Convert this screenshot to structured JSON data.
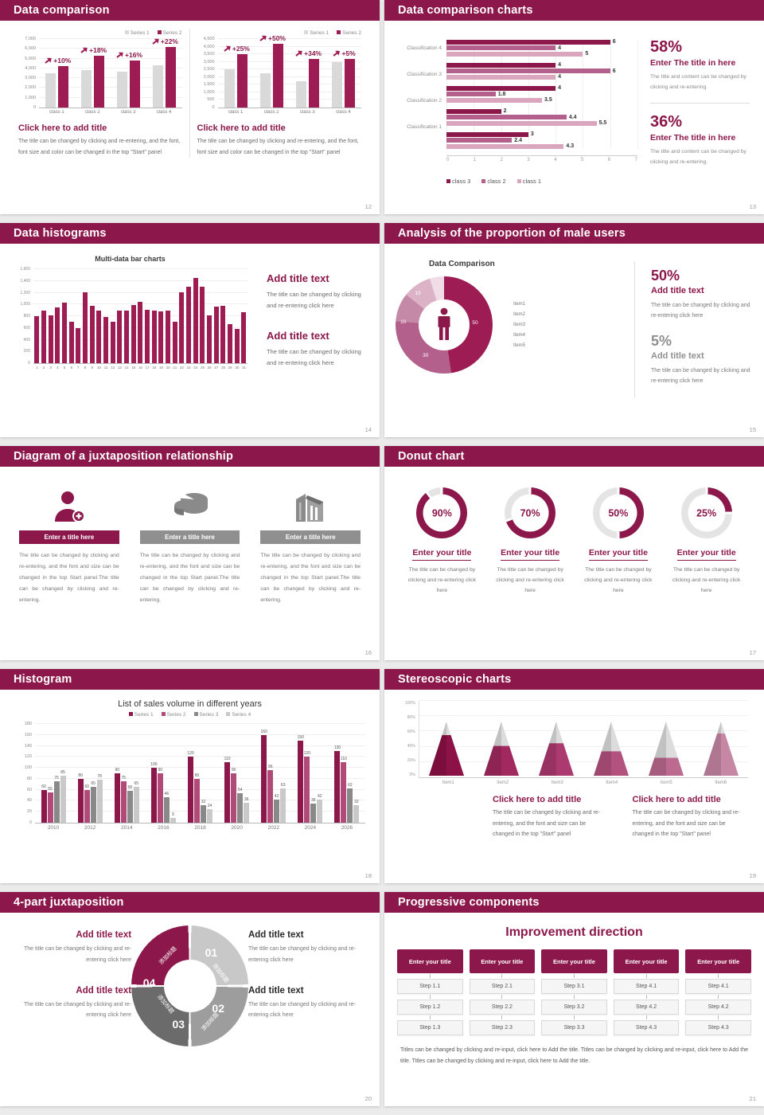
{
  "page": {
    "background": "#ebebeb"
  },
  "colors": {
    "header": "#8C184B",
    "accent": "#9D1C53",
    "bar_gray": "#D9D9D9",
    "rose": "#B3618C",
    "pink_light": "#D9A6BE",
    "ring_track": "#E4E4E4",
    "s18_series": [
      "#8C184B",
      "#B04A78",
      "#898989",
      "#C9C9C9"
    ],
    "donut15": [
      "#9D1C53",
      "#B3618C",
      "#C489A6",
      "#DCB2C7",
      "#EFDCE7"
    ],
    "pyramid": [
      "#8C1146",
      "#A22960",
      "#AC3A70",
      "#B4527F",
      "#BC6A90",
      "#C687A5"
    ],
    "ring4": [
      "#C8C8C8",
      "#9D9D9D",
      "#6B6B6B",
      "#8C184B"
    ]
  },
  "slides": {
    "s12": {
      "title": "Data comparison",
      "page_no": "12",
      "chart_data": {
        "type": "bar",
        "legend": [
          "Series 1",
          "Series 2"
        ],
        "charts": [
          {
            "categories": [
              "class 1",
              "class 2",
              "class 3",
              "class 4"
            ],
            "series": [
              {
                "name": "Series 1",
                "values": [
                  3500,
                  3800,
                  3700,
                  4300
                ]
              },
              {
                "name": "Series 2",
                "values": [
                  4200,
                  5300,
                  4800,
                  6200
                ]
              }
            ],
            "annotations": [
              "+10%",
              "+18%",
              "+16%",
              "+22%"
            ],
            "ylim": [
              0,
              7000
            ],
            "ystep": 1000
          },
          {
            "categories": [
              "class 1",
              "class 2",
              "class 3",
              "class 4"
            ],
            "series": [
              {
                "name": "Series 1",
                "values": [
                  2500,
                  2250,
                  1750,
                  3000
                ]
              },
              {
                "name": "Series 2",
                "values": [
                  3500,
                  4200,
                  3200,
                  3200
                ]
              }
            ],
            "annotations": [
              "+25%",
              "+50%",
              "+34%",
              "+5%"
            ],
            "ylim": [
              0,
              4500
            ],
            "ystep": 500
          }
        ]
      },
      "captions": [
        {
          "heading": "Click here to add title",
          "body": "The title can be changed by clicking and re-entering, and the font, font size and color can be changed in the top \"Start\" panel"
        },
        {
          "heading": "Click here to add title",
          "body": "The title can be changed by clicking and re-entering, and the font, font size and color can be changed in the top \"Start\" panel"
        }
      ]
    },
    "s13": {
      "title": "Data comparison charts",
      "page_no": "13",
      "chart_data": {
        "type": "bar-horizontal",
        "xlim": [
          0,
          7
        ],
        "groups": [
          {
            "label": "Classification 4",
            "values": [
              6,
              4,
              5
            ]
          },
          {
            "label": "Classification 3",
            "values": [
              4,
              6,
              4
            ]
          },
          {
            "label": "Classification 2",
            "values": [
              4,
              1.8,
              3.5
            ]
          },
          {
            "label": "Classification 1",
            "values": [
              2,
              4.4,
              5.5
            ]
          },
          {
            "label": "",
            "values": [
              3,
              2.4,
              4.3
            ]
          }
        ],
        "legend": [
          "class 3",
          "class 2",
          "class 1"
        ]
      },
      "stats": [
        {
          "value": "58%",
          "heading": "Enter The title in here",
          "body": "The title and content can be changed by clicking and re-entering."
        },
        {
          "value": "36%",
          "heading": "Enter The title in here",
          "body": "The title and content can be changed by clicking and re-entering."
        }
      ]
    },
    "s14": {
      "title": "Data histograms",
      "page_no": "14",
      "chart_data": {
        "type": "bar",
        "title": "Multi-data bar charts",
        "categories": [
          "1",
          "2",
          "3",
          "4",
          "5",
          "6",
          "7",
          "8",
          "9",
          "10",
          "11",
          "12",
          "13",
          "14",
          "15",
          "16",
          "17",
          "18",
          "19",
          "20",
          "21",
          "22",
          "23",
          "24",
          "25",
          "26",
          "27",
          "28",
          "29",
          "30",
          "31"
        ],
        "values": [
          800,
          900,
          810,
          950,
          1030,
          700,
          600,
          1210,
          980,
          900,
          780,
          700,
          900,
          900,
          990,
          1050,
          910,
          900,
          880,
          900,
          700,
          1210,
          1300,
          1450,
          1300,
          810,
          960,
          970,
          660,
          590,
          870
        ],
        "ylim": [
          0,
          1600
        ],
        "ystep": 200
      },
      "blocks": [
        {
          "heading": "Add title text",
          "body": "The title can be changed by clicking and re-entering click here"
        },
        {
          "heading": "Add title text",
          "body": "The title can be changed by clicking and re-entering click here"
        }
      ]
    },
    "s15": {
      "title": "Analysis of the proportion of male users",
      "page_no": "15",
      "chart_data": {
        "type": "pie",
        "title": "Data Comparison",
        "legend": [
          "Item1",
          "Item2",
          "Item3",
          "Item4",
          "Item5"
        ],
        "values": [
          50,
          30,
          10,
          10,
          5
        ],
        "labels_shown": [
          "50",
          "30",
          "10",
          "10"
        ]
      },
      "stats": [
        {
          "value": "50%",
          "heading": "Add title text",
          "body": "The title can be changed by clicking and re-entering click here"
        },
        {
          "value": "5%",
          "heading": "Add title text",
          "body": "The title can be changed by clicking and re-entering click here"
        }
      ]
    },
    "s16": {
      "title": "Diagram of a juxtaposition relationship",
      "page_no": "16",
      "items": [
        {
          "icon": "nurse-plus-icon",
          "banner": "Enter a title here",
          "body": "The title can be changed by clicking and re-entering, and the font and size can be changed in the top Start panel.The title can be changed by clicking and re-entering."
        },
        {
          "icon": "pie-3d-icon",
          "banner": "Enter a title here",
          "body": "The title can be changed by clicking and re-entering, and the font and size can be changed in the top Start panel.The title can be changed by clicking and re-entering."
        },
        {
          "icon": "building-icon",
          "banner": "Enter a title here",
          "body": "The title can be changed by clicking and re-entering, and the font and size can be changed in the top Start panel.The title can be changed by clicking and re-entering."
        }
      ]
    },
    "s17": {
      "title": "Donut chart",
      "page_no": "17",
      "chart_data": {
        "type": "pie",
        "donut_percentages": [
          90,
          70,
          50,
          25
        ]
      },
      "items": [
        {
          "pct": "90%",
          "heading": "Enter your title",
          "body": "The title can be changed by clicking and re-entering click here"
        },
        {
          "pct": "70%",
          "heading": "Enter your title",
          "body": "The title can be changed by clicking and re-entering click here"
        },
        {
          "pct": "50%",
          "heading": "Enter your title",
          "body": "The title can be changed by clicking and re-entering click here"
        },
        {
          "pct": "25%",
          "heading": "Enter your title",
          "body": "The title can be changed by clicking and re-entering click here"
        }
      ]
    },
    "s18": {
      "title": "Histogram",
      "page_no": "18",
      "chart_data": {
        "type": "bar",
        "title": "List of sales volume in different years",
        "categories": [
          "2010",
          "2012",
          "2014",
          "2016",
          "2018",
          "2020",
          "2022",
          "2024",
          "2026"
        ],
        "series": [
          {
            "name": "Series 1",
            "values": [
              60,
              80,
              90,
              100,
              120,
              110,
              160,
              150,
              130
            ]
          },
          {
            "name": "Series 2",
            "values": [
              55,
              60,
              75,
              90,
              80,
              90,
              96,
              120,
              110
            ]
          },
          {
            "name": "Series 3",
            "values": [
              75,
              65,
              58,
              46,
              32,
              54,
              42,
              35,
              62
            ]
          },
          {
            "name": "Series 4",
            "values": [
              85,
              78,
              65,
              9,
              24,
              36,
              63,
              42,
              32
            ]
          }
        ],
        "ylim": [
          0,
          180
        ],
        "ystep": 20
      }
    },
    "s19": {
      "title": "Stereoscopic charts",
      "page_no": "19",
      "chart_data": {
        "type": "bar",
        "categories": [
          "Item1",
          "Item2",
          "Item3",
          "Item4",
          "Item5",
          "Item6"
        ],
        "values_pct": [
          75,
          55,
          60,
          45,
          33,
          78
        ],
        "ylim": [
          0,
          100
        ],
        "ystep": 20,
        "ytick_labels": [
          "0%",
          "20%",
          "40%",
          "60%",
          "80%",
          "100%"
        ]
      },
      "captions": [
        {
          "heading": "Click here to add title",
          "body": "The title can be changed by clicking and re-entering, and the font and size can be changed in the top \"Start\" panel"
        },
        {
          "heading": "Click here to add title",
          "body": "The title can be changed by clicking and re-entering, and the font and size can be changed in the top \"Start\" panel"
        }
      ]
    },
    "s20": {
      "title": "4-part juxtaposition",
      "page_no": "20",
      "segments": [
        {
          "num": "01",
          "label": "添加标题"
        },
        {
          "num": "02",
          "label": "添加标题"
        },
        {
          "num": "03",
          "label": "添加标题"
        },
        {
          "num": "04",
          "label": "添加标题"
        }
      ],
      "blocks": [
        {
          "heading": "Add title text",
          "body": "The title can be changed by clicking and re-entering click here"
        },
        {
          "heading": "Add title text",
          "body": "The title can be changed by clicking and re-entering click here"
        },
        {
          "heading": "Add title text",
          "body": "The title can be changed by clicking and re-entering click here"
        },
        {
          "heading": "Add title text",
          "body": "The title can be changed by clicking and re-entering click here"
        }
      ]
    },
    "s21": {
      "title": "Progressive components",
      "page_no": "21",
      "heading": "Improvement direction",
      "columns": [
        {
          "header": "Enter your title",
          "steps": [
            "Step 1.1",
            "Step 1.2",
            "Step 1.3"
          ]
        },
        {
          "header": "Enter your title",
          "steps": [
            "Step 2.1",
            "Step 2.2",
            "Step 2.3"
          ]
        },
        {
          "header": "Enter your title",
          "steps": [
            "Step 3.1",
            "Step 3.2",
            "Step 3.3"
          ]
        },
        {
          "header": "Enter your title",
          "steps": [
            "Step 4.1",
            "Step 4.2",
            "Step 4.3"
          ]
        },
        {
          "header": "Enter your title",
          "steps": [
            "Step 4.1",
            "Step 4.2",
            "Step 4.3"
          ]
        }
      ],
      "footer": "Titles can be changed by clicking and re-input, click here to Add the title. Titles can be changed by clicking and re-input, click here to Add the title. Titles can be changed by clicking and re-input, click here to Add the title."
    }
  }
}
